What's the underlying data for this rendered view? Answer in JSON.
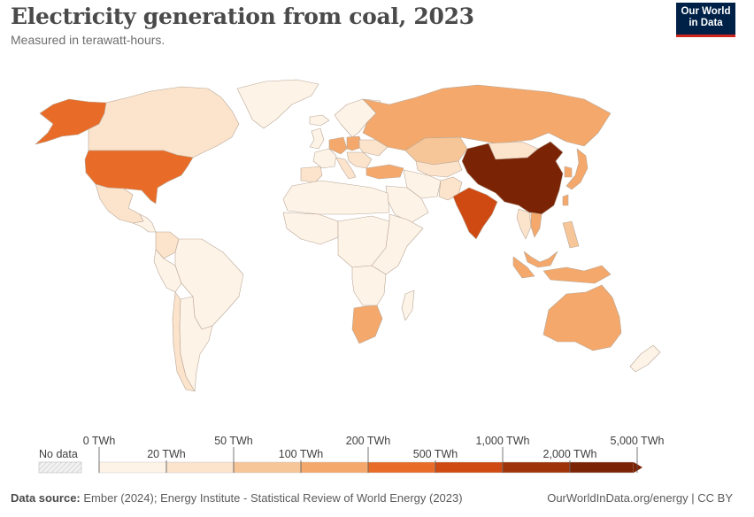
{
  "title": "Electricity generation from coal, 2023",
  "subtitle": "Measured in terawatt-hours.",
  "logo": {
    "line1": "Our World",
    "line2": "in Data"
  },
  "footer": {
    "source_label": "Data source:",
    "source_text": " Ember (2024); Energy Institute - Statistical Review of World Energy (2023)",
    "right_text": "OurWorldInData.org/energy | CC BY"
  },
  "colors": {
    "bin0": "#fef3e7",
    "bin1": "#fbe3cc",
    "bin2": "#f6c598",
    "bin3": "#f4a86b",
    "bin4": "#e86c28",
    "bin5": "#cf4a12",
    "bin6": "#9e3208",
    "bin7": "#7b2405",
    "nodata": "#f2f2f2"
  },
  "legend": {
    "nodata_label": "No data",
    "top_labels": [
      "0 TWh",
      "50 TWh",
      "200 TWh",
      "1,000 TWh",
      "5,000 TWh"
    ],
    "bottom_labels": [
      "20 TWh",
      "100 TWh",
      "500 TWh",
      "2,000 TWh"
    ]
  },
  "countries": [
    {
      "name": "Alaska (United States)",
      "bin": 4
    },
    {
      "name": "Canada",
      "bin": 1
    },
    {
      "name": "Greenland",
      "bin": 0
    },
    {
      "name": "Iceland",
      "bin": 0
    },
    {
      "name": "United States",
      "bin": 4
    },
    {
      "name": "Mexico",
      "bin": 1
    },
    {
      "name": "Central America",
      "bin": 0
    },
    {
      "name": "Colombia",
      "bin": 1
    },
    {
      "name": "Brazil",
      "bin": 0
    },
    {
      "name": "Peru",
      "bin": 0
    },
    {
      "name": "Chile",
      "bin": 1
    },
    {
      "name": "Argentina",
      "bin": 0
    },
    {
      "name": "United Kingdom",
      "bin": 0
    },
    {
      "name": "Spain",
      "bin": 1
    },
    {
      "name": "France",
      "bin": 0
    },
    {
      "name": "Germany",
      "bin": 3
    },
    {
      "name": "Poland",
      "bin": 3
    },
    {
      "name": "Italy",
      "bin": 1
    },
    {
      "name": "Scandinavia",
      "bin": 0
    },
    {
      "name": "Ukraine",
      "bin": 1
    },
    {
      "name": "Balkans",
      "bin": 1
    },
    {
      "name": "Turkey",
      "bin": 3
    },
    {
      "name": "Russia",
      "bin": 3
    },
    {
      "name": "Kazakhstan",
      "bin": 2
    },
    {
      "name": "Mongolia",
      "bin": 1
    },
    {
      "name": "China",
      "bin": 7
    },
    {
      "name": "India",
      "bin": 5
    },
    {
      "name": "Pakistan",
      "bin": 1
    },
    {
      "name": "Iran",
      "bin": 0
    },
    {
      "name": "Saudi Arabia",
      "bin": 0
    },
    {
      "name": "Central Asia",
      "bin": 1
    },
    {
      "name": "Vietnam",
      "bin": 3
    },
    {
      "name": "Thailand",
      "bin": 1
    },
    {
      "name": "Malaysia",
      "bin": 3
    },
    {
      "name": "Indonesia",
      "bin": 3
    },
    {
      "name": "Philippines",
      "bin": 2
    },
    {
      "name": "Japan",
      "bin": 3
    },
    {
      "name": "South Korea",
      "bin": 3
    },
    {
      "name": "Taiwan",
      "bin": 3
    },
    {
      "name": "Australia",
      "bin": 3
    },
    {
      "name": "New Zealand",
      "bin": 0
    },
    {
      "name": "North Africa",
      "bin": 0
    },
    {
      "name": "West Africa",
      "bin": 0
    },
    {
      "name": "Central Africa",
      "bin": 0
    },
    {
      "name": "East Africa",
      "bin": 0
    },
    {
      "name": "Southern Africa",
      "bin": 0
    },
    {
      "name": "South Africa",
      "bin": 3
    },
    {
      "name": "Madagascar",
      "bin": 0
    }
  ]
}
